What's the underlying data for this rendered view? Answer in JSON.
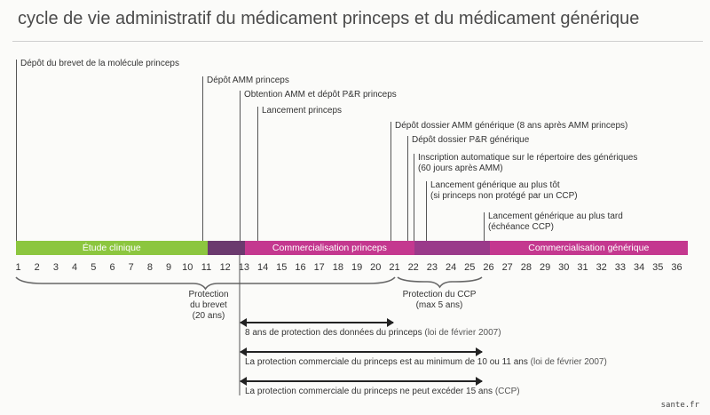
{
  "title": "cycle de vie administratif du médicament princeps et du médicament générique",
  "events": [
    {
      "label": "Dépôt du brevet de la molécule princeps",
      "at": 1
    },
    {
      "label": "Dépôt AMM princeps",
      "at": 11
    },
    {
      "label": "Obtention AMM et dépôt P&R princeps",
      "at": 13
    },
    {
      "label": "Lancement princeps",
      "at": 14
    },
    {
      "label": "Dépôt dossier AMM générique (8 ans après AMM princeps)",
      "at": 21
    },
    {
      "label": "Dépôt dossier P&R générique",
      "at": 22
    },
    {
      "label": "Inscription automatique sur le répertoire des génériques",
      "label2": "(60 jours après AMM)",
      "at": 22
    },
    {
      "label": "Lancement générique au plus tôt",
      "label2": "(si princeps non protégé par un CCP)",
      "at": 23
    },
    {
      "label": "Lancement générique au plus tard",
      "label2": "(échéance CCP)",
      "at": 26
    }
  ],
  "phases": [
    {
      "label": "Étude clinique",
      "from": 1,
      "to": 11,
      "color": "#8cc63f"
    },
    {
      "label": "",
      "from": 11,
      "to": 13,
      "color": "#6b3a6e"
    },
    {
      "label": "Commercialisation princeps",
      "from": 13,
      "to": 22,
      "color": "#c4388f"
    },
    {
      "label": "",
      "from": 22,
      "to": 26,
      "color": "#9a3a8a"
    },
    {
      "label": "Commercialisation générique",
      "from": 26,
      "to": 37,
      "color": "#c4388f"
    }
  ],
  "years": [
    "1",
    "2",
    "3",
    "4",
    "5",
    "6",
    "7",
    "8",
    "9",
    "10",
    "11",
    "12",
    "13",
    "14",
    "15",
    "16",
    "17",
    "18",
    "19",
    "20",
    "21",
    "22",
    "23",
    "24",
    "25",
    "26",
    "27",
    "28",
    "29",
    "30",
    "31",
    "32",
    "33",
    "34",
    "35",
    "36"
  ],
  "brevet": {
    "line1": "Protection",
    "line2": "du brevet",
    "line3": "(20 ans)"
  },
  "ccp": {
    "line1": "Protection du CCP",
    "line2": "(max 5 ans)"
  },
  "protections": [
    {
      "text": "8 ans de protection des données du princeps",
      "note": "(loi de février 2007)"
    },
    {
      "text": "La protection commerciale du princeps est au minimum de 10 ou 11 ans",
      "note": "(loi de février 2007)"
    },
    {
      "text": "La protection commerciale du princeps ne peut excéder 15 ans",
      "note": "(CCP)"
    }
  ],
  "source": "sante.fr"
}
